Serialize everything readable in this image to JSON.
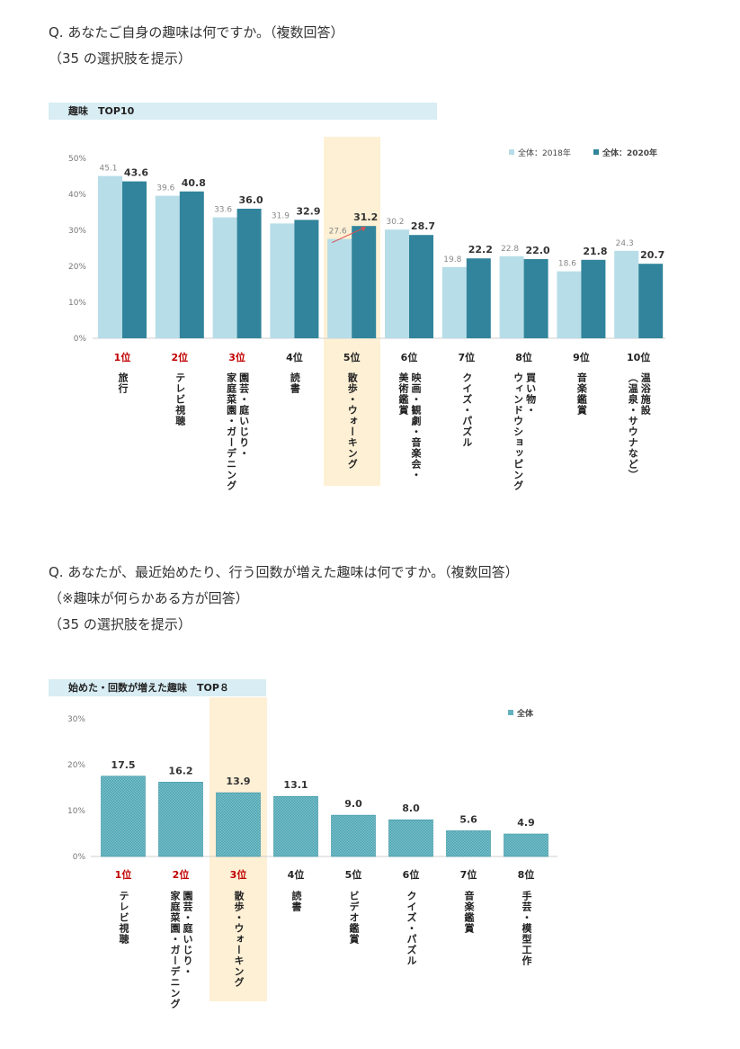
{
  "question1": {
    "lines": [
      "Q. あなたご自身の趣味は何ですか。（複数回答）",
      "（35 の選択肢を提示）"
    ]
  },
  "question2": {
    "lines": [
      "Q. あなたが、最近始めたり、行う回数が増えた趣味は何ですか。（複数回答）",
      "（※趣味が何らかある方が回答）",
      "（35 の選択肢を提示）"
    ]
  },
  "chart_data": [
    {
      "type": "bar",
      "title": "趣味　TOP10",
      "categories": [
        "旅行",
        "テレビ視聴",
        "園芸・庭いじり・\n家庭菜園・ガーデニング",
        "読書",
        "散歩・ウォーキング",
        "映画・観劇・音楽会・\n美術鑑賞",
        "クイズ・パズル",
        "買い物・\nウィンドウショッピング",
        "音楽鑑賞",
        "温浴施設\n（温泉・サウナなど）"
      ],
      "ranks": [
        "1位",
        "2位",
        "3位",
        "4位",
        "5位",
        "6位",
        "7位",
        "8位",
        "9位",
        "10位"
      ],
      "series": [
        {
          "name": "全体：2018年",
          "values": [
            45.1,
            39.6,
            33.6,
            31.9,
            27.6,
            30.2,
            19.8,
            22.8,
            18.6,
            24.3
          ],
          "labels": [
            "45.1",
            "39.6",
            "33.6",
            "31.9",
            "27.6",
            "30.2",
            "19.8",
            "22.8",
            "18.6",
            "24.3"
          ],
          "color": "#b7dde8"
        },
        {
          "name": "全体：2020年",
          "values": [
            43.6,
            40.8,
            36.0,
            32.9,
            31.2,
            28.7,
            22.2,
            22.0,
            21.8,
            20.7
          ],
          "labels": [
            "43.6",
            "40.8",
            "36.0",
            "32.9",
            "31.2",
            "28.7",
            "22.2",
            "22.0",
            "21.8",
            "20.7"
          ],
          "color": "#31849b"
        }
      ],
      "yticks": [
        "50%",
        "40%",
        "30%",
        "20%",
        "10%",
        "0%"
      ],
      "ylim": [
        0,
        50
      ],
      "highlight_index": 4,
      "highlight_color": "#fdf0d5",
      "legend_position": "top-right"
    },
    {
      "type": "bar",
      "title": "始めた・回数が増えた趣味　TOP８",
      "categories": [
        "テレビ視聴",
        "園芸・庭いじり・\n家庭菜園・ガーデニング",
        "散歩・ウォーキング",
        "読書",
        "ビデオ鑑賞",
        "クイズ・パズル",
        "音楽鑑賞",
        "手芸・模型工作"
      ],
      "ranks": [
        "1位",
        "2位",
        "3位",
        "4位",
        "5位",
        "6位",
        "7位",
        "8位"
      ],
      "series": [
        {
          "name": "全体",
          "values": [
            17.5,
            16.2,
            13.9,
            13.1,
            9.0,
            8.0,
            5.6,
            4.9
          ],
          "labels": [
            "17.5",
            "16.2",
            "13.9",
            "13.1",
            "9.0",
            "8.0",
            "5.6",
            "4.9"
          ],
          "color": "#4aa3b0"
        }
      ],
      "yticks": [
        "30%",
        "20%",
        "10%",
        "0%"
      ],
      "ylim": [
        0,
        30
      ],
      "highlight_index": 2,
      "highlight_color": "#fdf0d5",
      "legend_position": "top-right"
    }
  ]
}
